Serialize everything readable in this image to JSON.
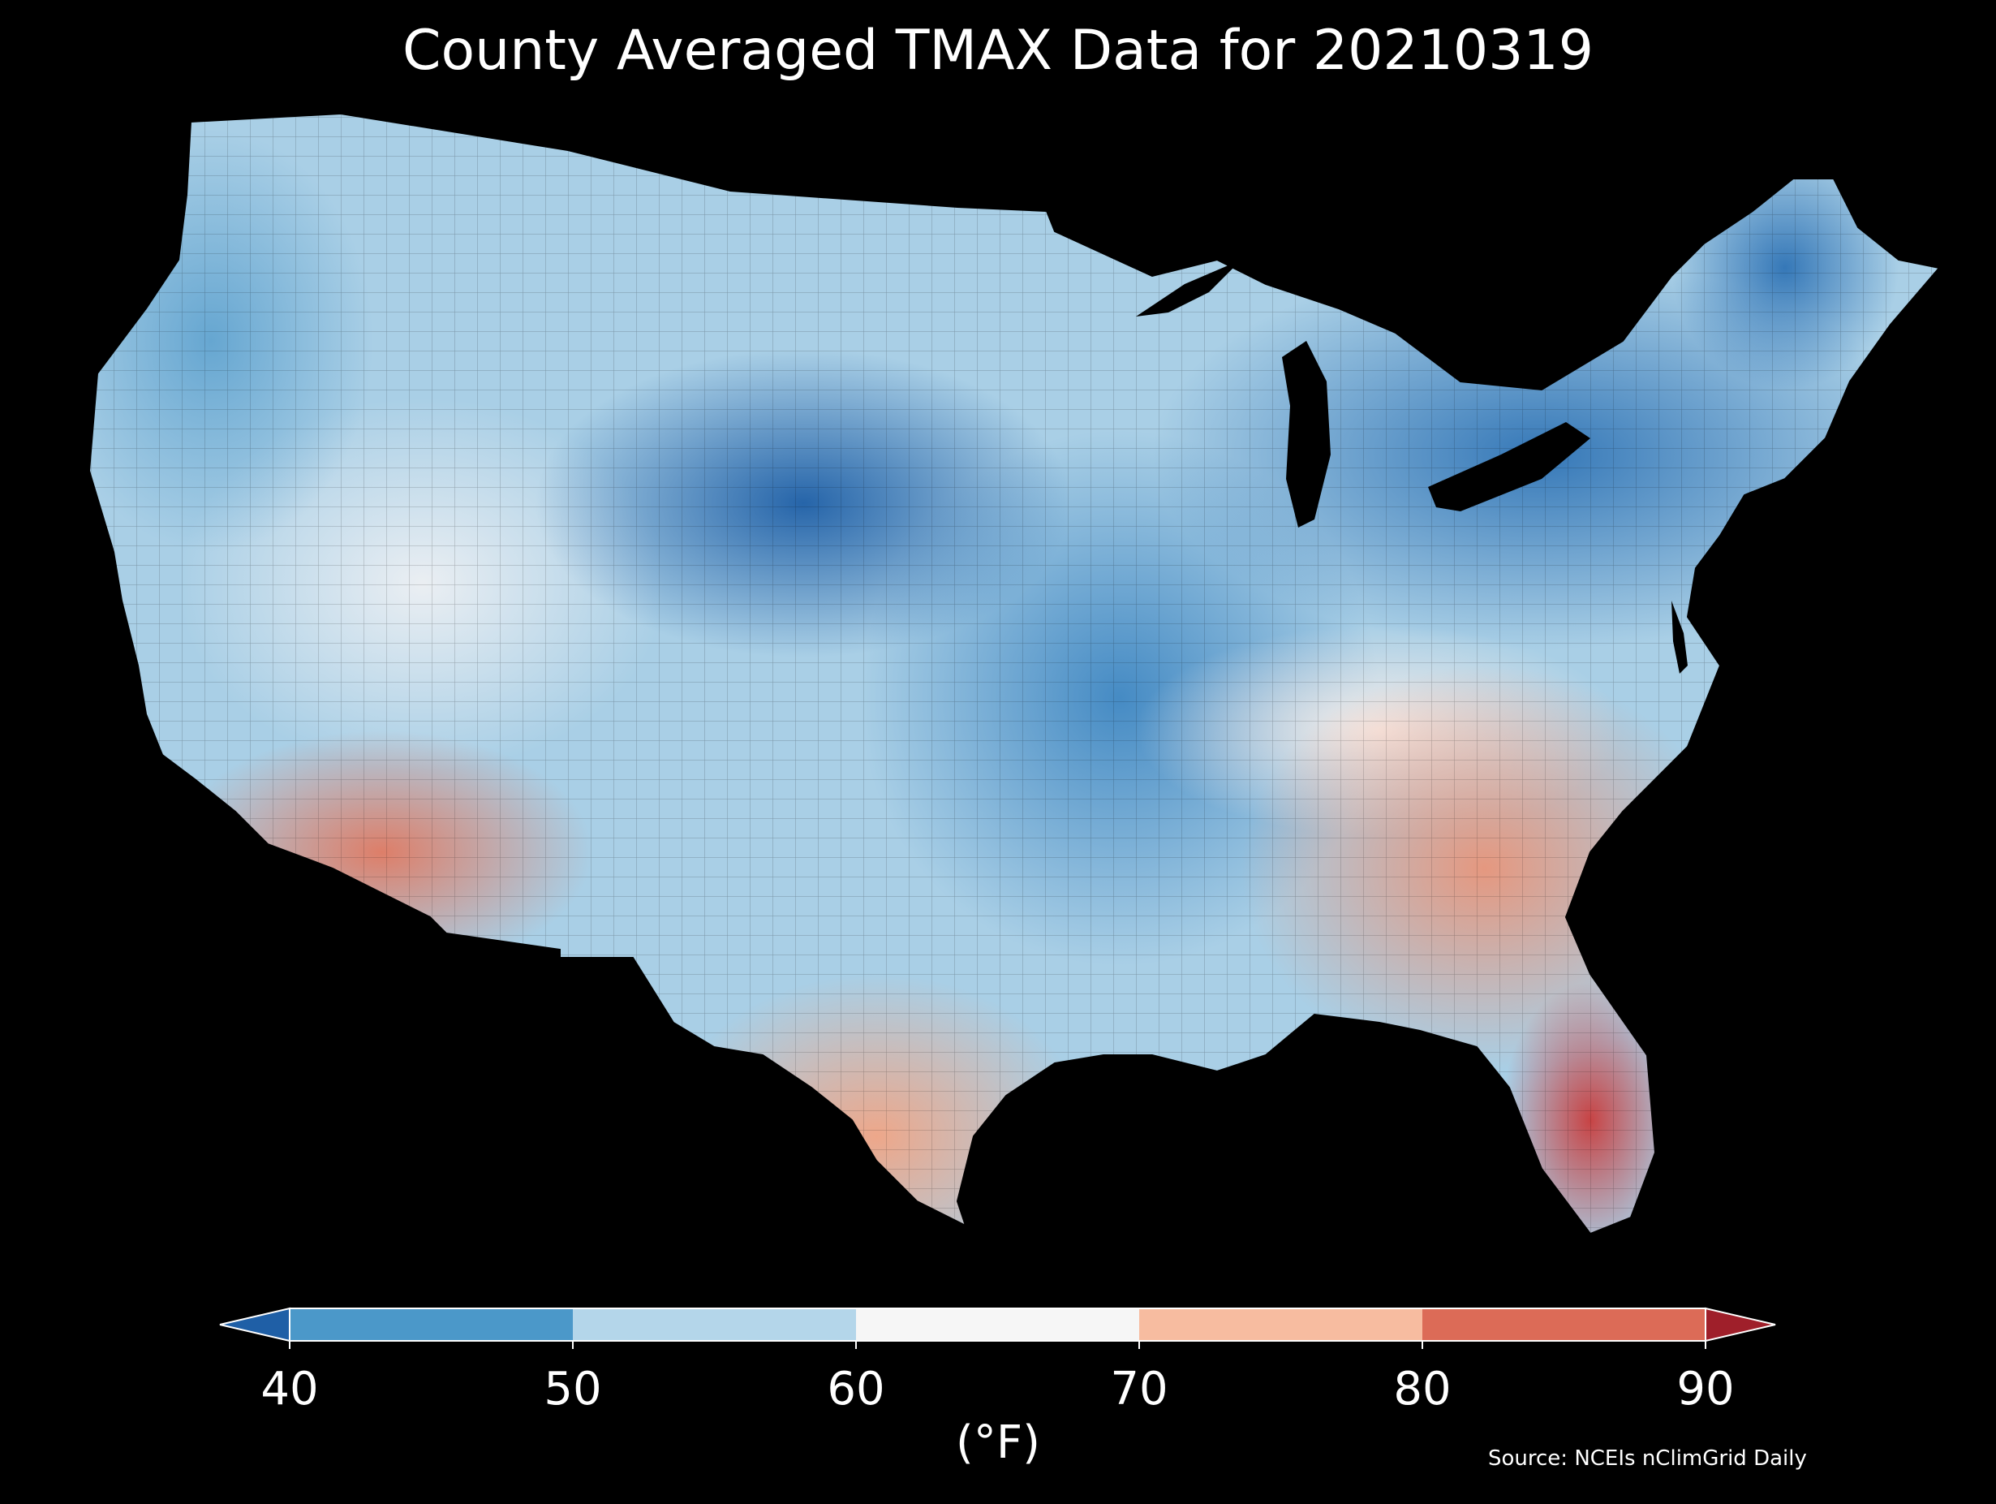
{
  "title": "County Averaged TMAX Data for 20210319",
  "colorbar": {
    "unit_label": "(°F)",
    "ticks": [
      "40",
      "50",
      "60",
      "70",
      "80",
      "90"
    ],
    "bins": [
      {
        "range": "<40",
        "color": "#1f5fa6"
      },
      {
        "range": "40-50",
        "color": "#4b98c9"
      },
      {
        "range": "50-60",
        "color": "#b4d6ea"
      },
      {
        "range": "60-70",
        "color": "#f6f6f6"
      },
      {
        "range": "70-80",
        "color": "#f7bca0"
      },
      {
        "range": "80-90",
        "color": "#dc6b57"
      },
      {
        "range": ">90",
        "color": "#9f1f2a"
      }
    ]
  },
  "source": "Source: NCEIs nClimGrid Daily",
  "regions": [
    {
      "name": "wyoming-nebraska-cold-core",
      "temp_f": 42
    },
    {
      "name": "great-lakes-northeast",
      "temp_f": 45
    },
    {
      "name": "pacific-northwest",
      "temp_f": 50
    },
    {
      "name": "central-plains-missouri",
      "temp_f": 47
    },
    {
      "name": "great-basin",
      "temp_f": 60
    },
    {
      "name": "southwest-arizona",
      "temp_f": 80
    },
    {
      "name": "texas-south",
      "temp_f": 75
    },
    {
      "name": "southeast-georgia-carolinas",
      "temp_f": 76
    },
    {
      "name": "florida-peninsula",
      "temp_f": 84
    }
  ]
}
